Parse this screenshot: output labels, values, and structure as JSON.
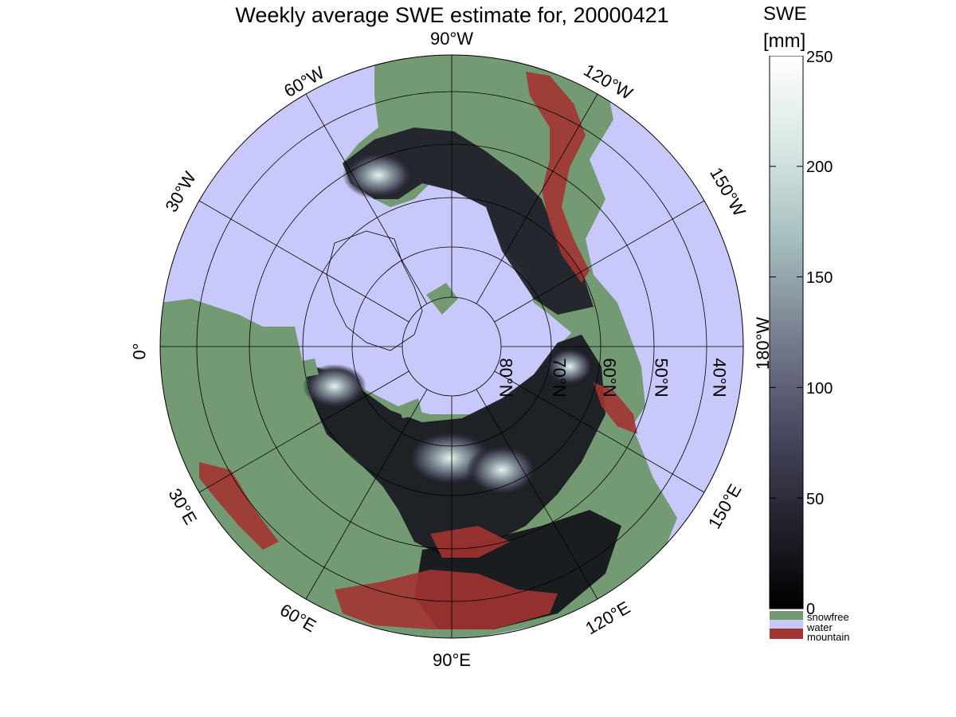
{
  "title": "Weekly average SWE estimate for, 20000421",
  "colorbar": {
    "label": "SWE",
    "unit": "[mm]",
    "ticks": [
      "0",
      "50",
      "100",
      "150",
      "200",
      "250"
    ],
    "range": [
      0,
      250
    ],
    "gradient": [
      "#000000",
      "#23232e",
      "#4b4b63",
      "#7a8191",
      "#a4bcbd",
      "#d6e6e3",
      "#ffffff"
    ],
    "categories": [
      {
        "label": "snowfree",
        "color": "#739a73"
      },
      {
        "label": "water",
        "color": "#c8c8fa"
      },
      {
        "label": "mountain",
        "color": "#a23432"
      }
    ]
  },
  "map": {
    "projection": "north polar stereographic",
    "colors": {
      "ocean": "#c8c8fa",
      "land": "#739a73",
      "mountain": "#a23432",
      "snow_dark": "#0d0d12",
      "snow_bright": "#e8f2ef",
      "grid": "#000000"
    },
    "longitude_labels": [
      "90°W",
      "60°W",
      "120°W",
      "30°W",
      "150°W",
      "0°",
      "180°W",
      "30°E",
      "150°E",
      "60°E",
      "120°E",
      "90°E"
    ],
    "latitude_labels": [
      "40°N",
      "50°N",
      "60°N",
      "70°N",
      "80°N"
    ]
  }
}
